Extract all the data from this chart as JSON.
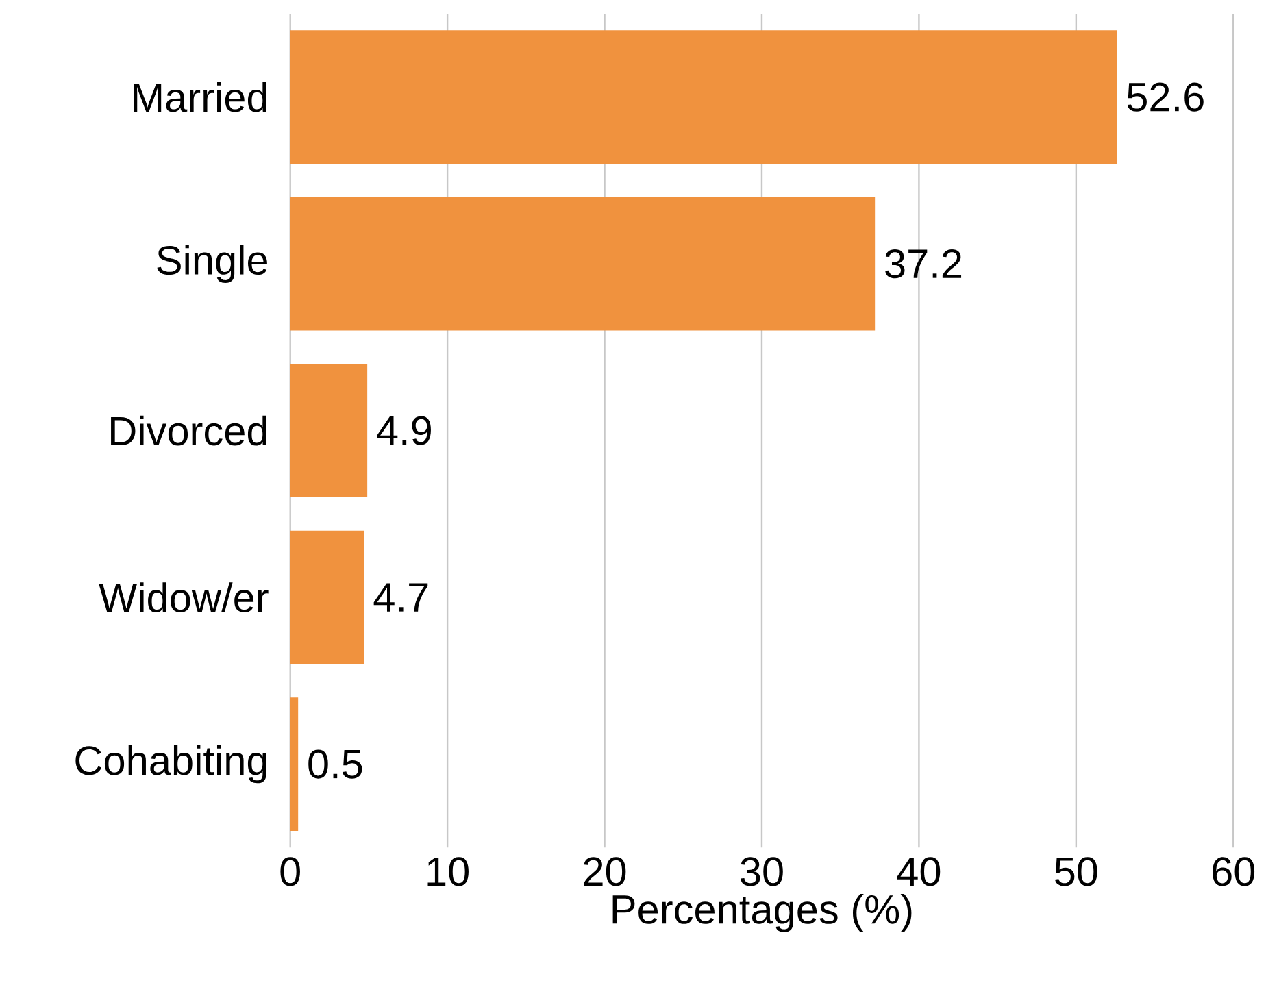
{
  "chart_data": {
    "type": "bar",
    "orientation": "horizontal",
    "categories": [
      "Married",
      "Single",
      "Divorced",
      "Widow/er",
      "Cohabiting"
    ],
    "values": [
      52.6,
      37.2,
      4.9,
      4.7,
      0.5
    ],
    "color": "#f0923e",
    "xlabel": "Percentages (%)",
    "xlim": [
      0,
      60
    ],
    "xticks": [
      0,
      10,
      20,
      30,
      40,
      50,
      60
    ],
    "grid": "x",
    "data_labels": true
  }
}
